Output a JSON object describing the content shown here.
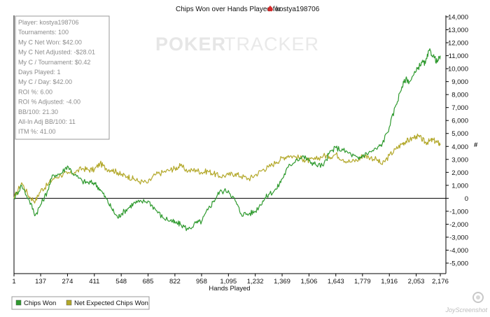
{
  "chart_data": {
    "type": "line",
    "title": "Chips Won over Hands Played for",
    "player_name": "kostya198706",
    "xlabel": "Hands Played",
    "ylabel": "#",
    "xlim": [
      1,
      2176
    ],
    "ylim": [
      -5000,
      14000
    ],
    "x_ticks": [
      "1",
      "137",
      "274",
      "411",
      "548",
      "685",
      "822",
      "958",
      "1,095",
      "1,232",
      "1,369",
      "1,506",
      "1,643",
      "1,779",
      "1,916",
      "2,053",
      "2,176"
    ],
    "y_ticks": [
      "14,000",
      "13,000",
      "12,000",
      "11,000",
      "10,000",
      "9,000",
      "8,000",
      "7,000",
      "6,000",
      "5,000",
      "4,000",
      "3,000",
      "2,000",
      "1,000",
      "0",
      "-1,000",
      "-2,000",
      "-3,000",
      "-4,000",
      "-5,000"
    ],
    "series": [
      {
        "name": "Chips Won",
        "color": "#2f9a2f",
        "x": [
          1,
          40,
          80,
          110,
          137,
          170,
          200,
          240,
          274,
          310,
          350,
          380,
          411,
          440,
          470,
          500,
          530,
          548,
          580,
          610,
          640,
          685,
          720,
          760,
          800,
          822,
          850,
          890,
          930,
          958,
          990,
          1020,
          1050,
          1095,
          1130,
          1160,
          1200,
          1232,
          1270,
          1300,
          1340,
          1369,
          1400,
          1440,
          1480,
          1506,
          1540,
          1580,
          1610,
          1643,
          1680,
          1720,
          1760,
          1779,
          1810,
          1850,
          1880,
          1916,
          1950,
          1980,
          2000,
          2020,
          2053,
          2080,
          2100,
          2120,
          2140,
          2160,
          2176
        ],
        "values": [
          0,
          1000,
          -200,
          -1300,
          -500,
          500,
          1800,
          1900,
          2500,
          1800,
          1300,
          1200,
          1200,
          700,
          0,
          -800,
          -1500,
          -1200,
          -800,
          -400,
          -300,
          -200,
          -800,
          -1500,
          -1700,
          -1900,
          -2000,
          -2400,
          -1900,
          -1800,
          -900,
          -200,
          500,
          600,
          -200,
          -1200,
          -1200,
          -1000,
          -200,
          300,
          700,
          1500,
          2400,
          3000,
          3200,
          2900,
          2600,
          2500,
          3500,
          3900,
          3700,
          3400,
          3000,
          3300,
          3500,
          3800,
          4200,
          5500,
          7200,
          8600,
          9200,
          9000,
          9800,
          10500,
          10400,
          11400,
          11000,
          10500,
          11000
        ]
      },
      {
        "name": "Net Expected Chips Won",
        "color": "#b3a82a",
        "x": [
          1,
          40,
          80,
          110,
          137,
          170,
          200,
          240,
          274,
          310,
          350,
          380,
          411,
          440,
          470,
          500,
          530,
          548,
          580,
          610,
          640,
          685,
          720,
          760,
          800,
          822,
          850,
          890,
          930,
          958,
          990,
          1020,
          1050,
          1095,
          1130,
          1160,
          1200,
          1232,
          1270,
          1300,
          1340,
          1369,
          1400,
          1440,
          1480,
          1506,
          1540,
          1580,
          1610,
          1643,
          1680,
          1720,
          1760,
          1779,
          1810,
          1850,
          1880,
          1916,
          1950,
          1980,
          2000,
          2020,
          2053,
          2080,
          2100,
          2120,
          2140,
          2160,
          2176
        ],
        "values": [
          0,
          1200,
          100,
          -200,
          600,
          1000,
          1500,
          1800,
          1900,
          2000,
          2300,
          2200,
          2200,
          2700,
          2300,
          2200,
          2000,
          1800,
          1700,
          1500,
          1300,
          1200,
          1800,
          2000,
          2200,
          2300,
          2500,
          2100,
          2200,
          2000,
          2100,
          1900,
          1700,
          1800,
          1900,
          1700,
          1500,
          1800,
          2200,
          2400,
          2800,
          3100,
          3300,
          3200,
          3000,
          2900,
          3000,
          3300,
          3200,
          3400,
          3000,
          2800,
          3000,
          3300,
          3200,
          3000,
          2600,
          3300,
          3800,
          4200,
          4400,
          4500,
          4800,
          4600,
          4300,
          4400,
          4500,
          4300,
          4200
        ]
      }
    ],
    "zero_line": true,
    "legend_position": "bottom-left",
    "stats_box": [
      "Player: kostya198706",
      "Tournaments: 100",
      "My C Net Won: $42.00",
      "My C Net Adjusted: -$28.01",
      "My C / Tournament: $0.42",
      "Days Played: 1",
      "My C / Day: $42.00",
      "ROI %: 6.00",
      "ROI % Adjusted: -4.00",
      "BB/100: 21.30",
      "All-In Adj BB/100: 11",
      "ITM %: 41.00"
    ],
    "watermark": "POKERTRACKER",
    "corner_logo": "JoyScreenshot"
  },
  "colors": {
    "chips_won": "#2f9a2f",
    "net_expected": "#b3a82a",
    "axis": "#000000",
    "stats_text": "#8c8c8c",
    "logo_spade": "#d42b2b"
  }
}
